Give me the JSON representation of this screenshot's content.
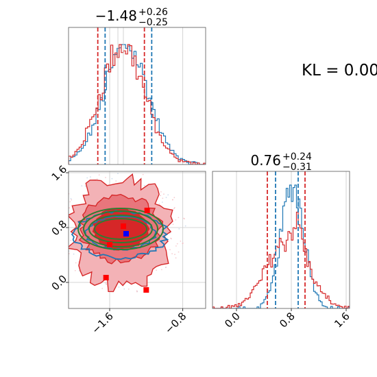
{
  "chart_data": {
    "type": "corner",
    "colors": {
      "red": "#d62728",
      "blue": "#1f77b4",
      "green": "#2f7d32",
      "grid": "#c8c8c8",
      "point_red": "#ff0000",
      "point_blue": "#0000ff"
    },
    "param1": {
      "title_main": "−1.48",
      "title_sup": "+0.26",
      "title_sub": "−0.25",
      "range": [
        -2.05,
        -0.55
      ],
      "ticks": [
        -1.6,
        -0.8
      ],
      "tick_labels": [
        "−1.6",
        "−0.8"
      ],
      "grid": [
        -1.6,
        -0.8
      ],
      "quantiles_red": [
        -1.73,
        -1.22
      ],
      "quantiles_blue": [
        -1.65,
        -1.14
      ],
      "median_lines": [
        -1.51,
        -1.45
      ],
      "mean": -1.44,
      "sd": 0.24
    },
    "param2": {
      "title_main": "0.76",
      "title_sup": "+0.24",
      "title_sub": "−0.31",
      "range": [
        -0.35,
        1.65
      ],
      "ticks": [
        0.0,
        0.8,
        1.6
      ],
      "tick_labels": [
        "0.0",
        "0.8",
        "1.6"
      ],
      "grid": [
        0.0,
        0.8,
        1.6
      ],
      "quantiles_red": [
        0.45,
        1.0
      ],
      "quantiles_blue": [
        0.57,
        0.9
      ],
      "blue_mean": 0.76,
      "blue_sd": 0.17,
      "red_mean": 0.74,
      "red_sd": 0.3
    },
    "scatter_2d": {
      "x_range": [
        -2.05,
        -0.55
      ],
      "y_range": [
        -0.38,
        1.62
      ],
      "y_ticks": [
        0.0,
        0.8,
        1.6
      ],
      "y_tick_labels": [
        "0.0",
        "0.8",
        "1.6"
      ],
      "x_ticks": [
        -1.6,
        -0.8
      ],
      "x_tick_labels": [
        "−1.6",
        "−0.8"
      ],
      "grid_x": [
        -1.6,
        -0.8
      ],
      "grid_y": [
        0.0,
        0.8,
        1.6
      ],
      "contour_center": [
        -1.48,
        0.76
      ],
      "red_markers": [
        [
          -1.19,
          1.05
        ],
        [
          -1.45,
          0.82
        ],
        [
          -1.64,
          0.07
        ],
        [
          -1.2,
          -0.11
        ],
        [
          -1.6,
          0.55
        ]
      ],
      "blue_marker": [
        -1.42,
        0.71
      ]
    },
    "annotation": "KL = 0.00"
  }
}
